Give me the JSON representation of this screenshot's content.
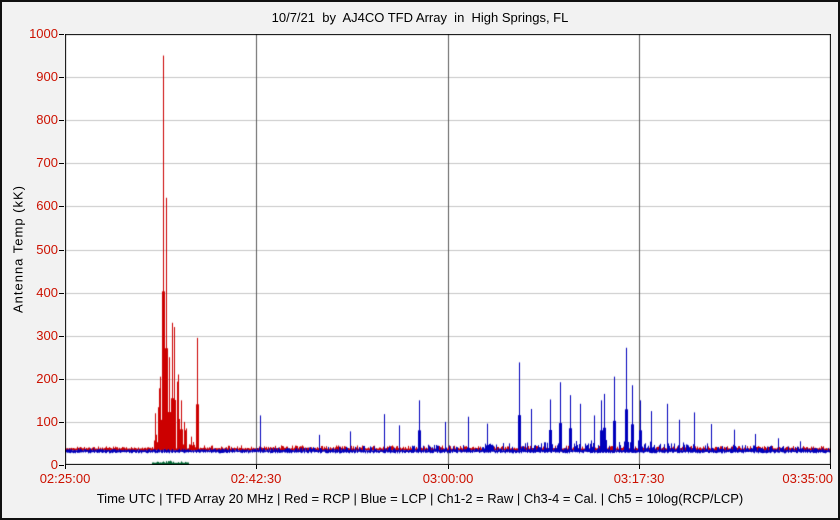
{
  "chart_data": {
    "type": "line",
    "title": "10/7/21  by  AJ4CO TFD Array  in  High Springs, FL",
    "ylabel": "Antenna Temp (kK)",
    "xlabel": "Time UTC",
    "footer": "Time UTC | TFD Array 20 MHz | Red = RCP | Blue = LCP | Ch1-2 = Raw | Ch3-4 = Cal. | Ch5 = 10log(RCP/LCP)",
    "ylim": [
      0,
      1000
    ],
    "y_ticks": [
      0,
      100,
      200,
      300,
      400,
      500,
      600,
      700,
      800,
      900,
      1000
    ],
    "x_ticks": [
      "02:25:00",
      "02:42:30",
      "03:00:00",
      "03:17:30",
      "03:35:00"
    ],
    "x_range_minutes": [
      0,
      70
    ],
    "grid": true,
    "legend_position": "none",
    "colors": {
      "plot_bg": "#ffffff",
      "grid_h": "#c6c6c6",
      "grid_v": "#5a5a5a",
      "axis": "#000000",
      "tick_label": "#cc1100"
    },
    "series": [
      {
        "name": "RCP (Red, Ch1-2 Raw)",
        "color": "#cc0000",
        "baseline": 38,
        "noise_profile": [
          [
            0,
            6
          ],
          [
            7.8,
            6
          ],
          [
            8.4,
            60
          ],
          [
            8.9,
            260
          ],
          [
            9.4,
            300
          ],
          [
            10,
            220
          ],
          [
            10.6,
            120
          ],
          [
            11.2,
            50
          ],
          [
            11.9,
            8
          ],
          [
            70,
            6
          ]
        ],
        "spikes": [
          [
            8.2,
            120
          ],
          [
            8.7,
            205
          ],
          [
            9.0,
            950
          ],
          [
            9.2,
            620
          ],
          [
            9.5,
            250
          ],
          [
            9.8,
            330
          ],
          [
            10.0,
            320
          ],
          [
            10.3,
            210
          ],
          [
            10.6,
            150
          ],
          [
            10.9,
            100
          ],
          [
            12.05,
            295
          ]
        ]
      },
      {
        "name": "LCP (Blue, Ch3-4 Cal)",
        "color": "#0000bb",
        "baseline": 34,
        "noise_profile": [
          [
            0,
            5
          ],
          [
            16,
            5
          ],
          [
            18,
            8
          ],
          [
            22,
            7
          ],
          [
            26,
            10
          ],
          [
            29,
            12
          ],
          [
            31,
            10
          ],
          [
            33,
            14
          ],
          [
            35,
            12
          ],
          [
            38,
            16
          ],
          [
            40,
            20
          ],
          [
            42,
            18
          ],
          [
            44,
            24
          ],
          [
            46,
            22
          ],
          [
            48,
            26
          ],
          [
            50,
            28
          ],
          [
            52,
            26
          ],
          [
            54,
            20
          ],
          [
            56,
            22
          ],
          [
            58,
            18
          ],
          [
            60,
            16
          ],
          [
            62,
            14
          ],
          [
            64,
            12
          ],
          [
            66,
            10
          ],
          [
            68,
            9
          ],
          [
            70,
            8
          ]
        ],
        "spikes": [
          [
            17.8,
            115
          ],
          [
            23.2,
            70
          ],
          [
            26.1,
            78
          ],
          [
            29.2,
            118
          ],
          [
            30.6,
            92
          ],
          [
            32.4,
            150
          ],
          [
            34.8,
            100
          ],
          [
            36.9,
            112
          ],
          [
            38.6,
            96
          ],
          [
            41.5,
            238
          ],
          [
            42.6,
            130
          ],
          [
            44.4,
            152
          ],
          [
            45.3,
            192
          ],
          [
            46.2,
            162
          ],
          [
            47.1,
            142
          ],
          [
            48.4,
            115
          ],
          [
            49.0,
            150
          ],
          [
            49.3,
            165
          ],
          [
            50.2,
            205
          ],
          [
            51.3,
            272
          ],
          [
            51.9,
            185
          ],
          [
            52.6,
            150
          ],
          [
            53.6,
            125
          ],
          [
            55.1,
            142
          ],
          [
            56.2,
            105
          ],
          [
            57.6,
            122
          ],
          [
            59.1,
            95
          ],
          [
            61.2,
            82
          ],
          [
            63.1,
            72
          ],
          [
            65.2,
            62
          ],
          [
            67.3,
            55
          ]
        ]
      },
      {
        "name": "Ch5 10log(RCP/LCP)",
        "color": "#006633",
        "baseline": 5,
        "segment": [
          7.9,
          11.3
        ],
        "noise_profile": [
          [
            7.9,
            2
          ],
          [
            9,
            6
          ],
          [
            10,
            5
          ],
          [
            11.3,
            2
          ]
        ],
        "spikes": []
      }
    ]
  }
}
